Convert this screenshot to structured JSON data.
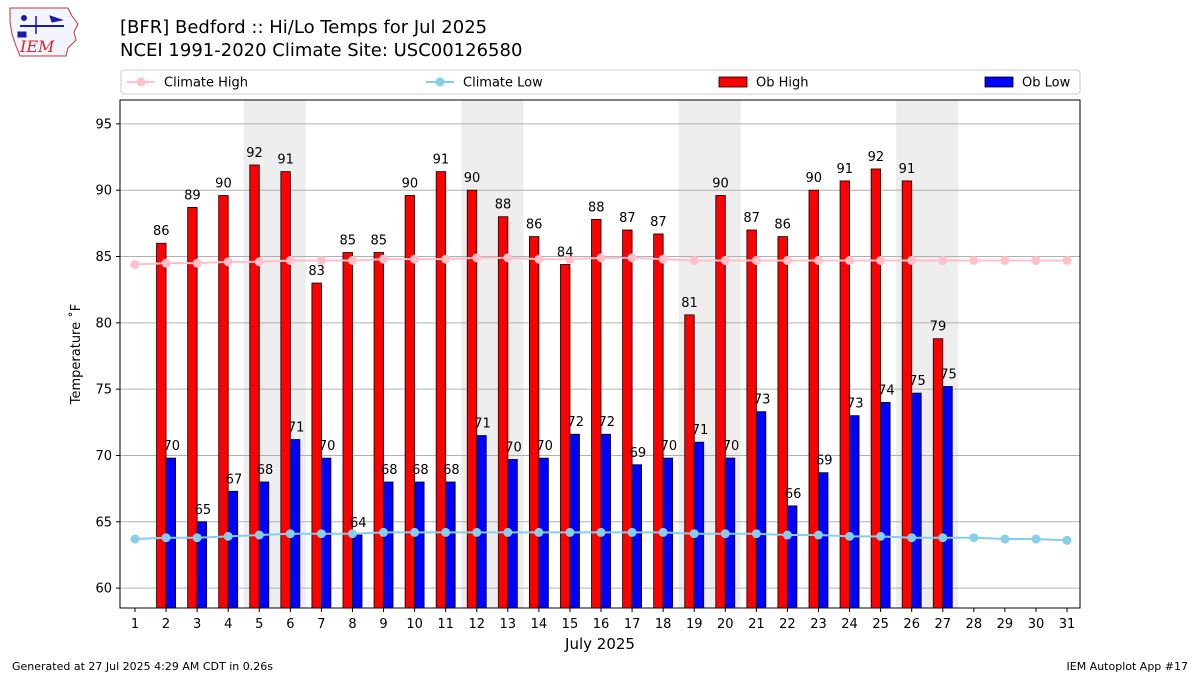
{
  "header": {
    "title_line1": "[BFR] Bedford :: Hi/Lo Temps for Jul 2025",
    "title_line2": "NCEI 1991-2020 Climate Site: USC00126580",
    "logo_text": "IEM"
  },
  "footer": {
    "left": "Generated at 27 Jul 2025 4:29 AM CDT in 0.26s",
    "right": "IEM Autoplot App #17"
  },
  "colors": {
    "ob_high": "#ff0000",
    "ob_low": "#0000ff",
    "climate_high": "#ffc0cb",
    "climate_low": "#87ceeb",
    "weekend_shade": "#eeeeee",
    "grid": "#b0b0b0"
  },
  "chart_data": {
    "type": "bar",
    "xlabel": "July 2025",
    "ylabel": "Temperature ˚F",
    "ylim": [
      58.5,
      96.8
    ],
    "yticks": [
      60,
      65,
      70,
      75,
      80,
      85,
      90,
      95
    ],
    "grid": "horizontal",
    "legend_position": "top",
    "categories": [
      "1",
      "2",
      "3",
      "4",
      "5",
      "6",
      "7",
      "8",
      "9",
      "10",
      "11",
      "12",
      "13",
      "14",
      "15",
      "16",
      "17",
      "18",
      "19",
      "20",
      "21",
      "22",
      "23",
      "24",
      "25",
      "26",
      "27",
      "28",
      "29",
      "30",
      "31"
    ],
    "weekend_spans": [
      [
        5,
        6
      ],
      [
        12,
        13
      ],
      [
        19,
        20
      ],
      [
        26,
        27
      ]
    ],
    "series": [
      {
        "name": "Climate High",
        "kind": "line",
        "values": [
          84.4,
          84.5,
          84.5,
          84.6,
          84.6,
          84.7,
          84.7,
          84.7,
          84.8,
          84.8,
          84.8,
          84.9,
          84.9,
          84.8,
          84.8,
          84.9,
          84.9,
          84.8,
          84.7,
          84.7,
          84.7,
          84.7,
          84.7,
          84.7,
          84.7,
          84.7,
          84.7,
          84.7,
          84.7,
          84.7,
          84.7
        ]
      },
      {
        "name": "Climate Low",
        "kind": "line",
        "values": [
          63.7,
          63.8,
          63.8,
          63.9,
          64.0,
          64.1,
          64.1,
          64.1,
          64.2,
          64.2,
          64.2,
          64.2,
          64.2,
          64.2,
          64.2,
          64.2,
          64.2,
          64.2,
          64.1,
          64.1,
          64.1,
          64.0,
          64.0,
          63.9,
          63.9,
          63.8,
          63.8,
          63.8,
          63.7,
          63.7,
          63.6
        ]
      },
      {
        "name": "Ob High",
        "kind": "bar",
        "values": [
          null,
          86,
          89,
          90,
          92,
          91,
          83,
          85,
          85,
          90,
          91,
          90,
          88,
          86,
          84,
          88,
          87,
          87,
          81,
          90,
          87,
          86,
          90,
          91,
          92,
          91,
          79,
          null,
          null,
          null,
          null
        ],
        "bar_tops": [
          null,
          86.0,
          88.7,
          89.6,
          91.9,
          91.4,
          83.0,
          85.3,
          85.3,
          89.6,
          91.4,
          90.0,
          88.0,
          86.5,
          84.4,
          87.8,
          87.0,
          86.7,
          80.6,
          89.6,
          87.0,
          86.5,
          90.0,
          90.7,
          91.6,
          90.7,
          78.8,
          null,
          null,
          null,
          null
        ]
      },
      {
        "name": "Ob Low",
        "kind": "bar",
        "values": [
          null,
          70,
          65,
          67,
          68,
          71,
          70,
          64,
          68,
          68,
          68,
          71,
          70,
          70,
          72,
          72,
          69,
          70,
          71,
          70,
          73,
          66,
          69,
          73,
          74,
          75,
          75,
          null,
          null,
          null,
          null
        ],
        "bar_tops": [
          null,
          69.8,
          65.0,
          67.3,
          68.0,
          71.2,
          69.8,
          64.0,
          68.0,
          68.0,
          68.0,
          71.5,
          69.7,
          69.8,
          71.6,
          71.6,
          69.3,
          69.8,
          71.0,
          69.8,
          73.3,
          66.2,
          68.7,
          73.0,
          74.0,
          74.7,
          75.2,
          null,
          null,
          null,
          null
        ]
      }
    ]
  }
}
